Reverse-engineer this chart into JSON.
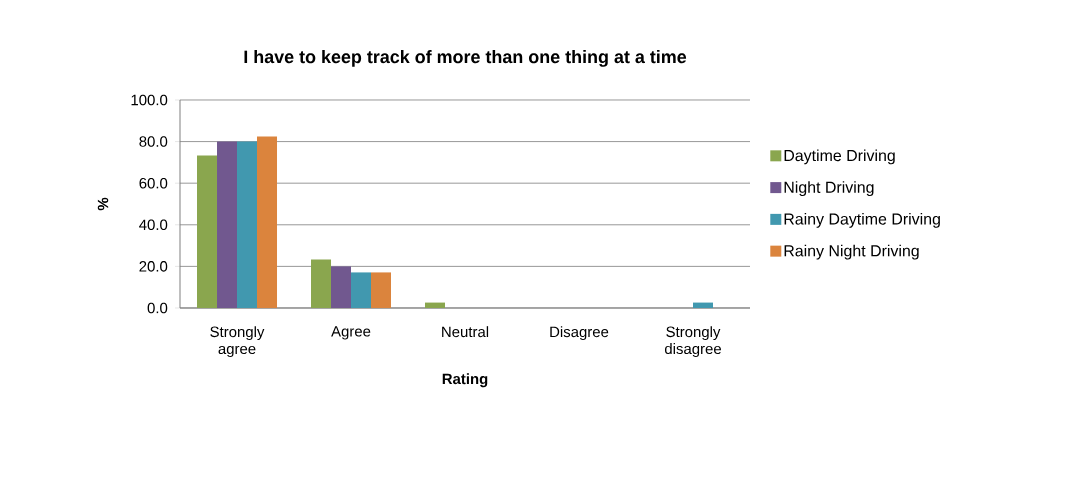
{
  "chart_data": {
    "type": "bar",
    "title": "I have to keep track of more than one thing at a time",
    "xlabel": "Rating",
    "ylabel": "%",
    "categories": [
      "Strongly agree",
      "Agree",
      "Neutral",
      "Disagree",
      "Strongly disagree"
    ],
    "series": [
      {
        "name": "Daytime Driving",
        "color": "#8aa64e",
        "values": [
          73.3,
          23.3,
          2.6,
          0,
          0
        ]
      },
      {
        "name": "Night Driving",
        "color": "#71588f",
        "values": [
          80.0,
          20.0,
          0,
          0,
          0
        ]
      },
      {
        "name": "Rainy Daytime Driving",
        "color": "#4198af",
        "values": [
          80.0,
          17.1,
          0,
          0,
          2.6
        ]
      },
      {
        "name": "Rainy Night Driving",
        "color": "#db843d",
        "values": [
          82.4,
          17.1,
          0,
          0,
          0
        ]
      }
    ],
    "ylim": [
      0,
      100
    ],
    "yticks": [
      {
        "value": 0,
        "label": "0.0"
      },
      {
        "value": 20,
        "label": "20.0"
      },
      {
        "value": 40,
        "label": "40.0"
      },
      {
        "value": 60,
        "label": "60.0"
      },
      {
        "value": 80,
        "label": "80.0"
      },
      {
        "value": 100,
        "label": "100.0"
      }
    ],
    "grid": "y",
    "legend": "right"
  }
}
